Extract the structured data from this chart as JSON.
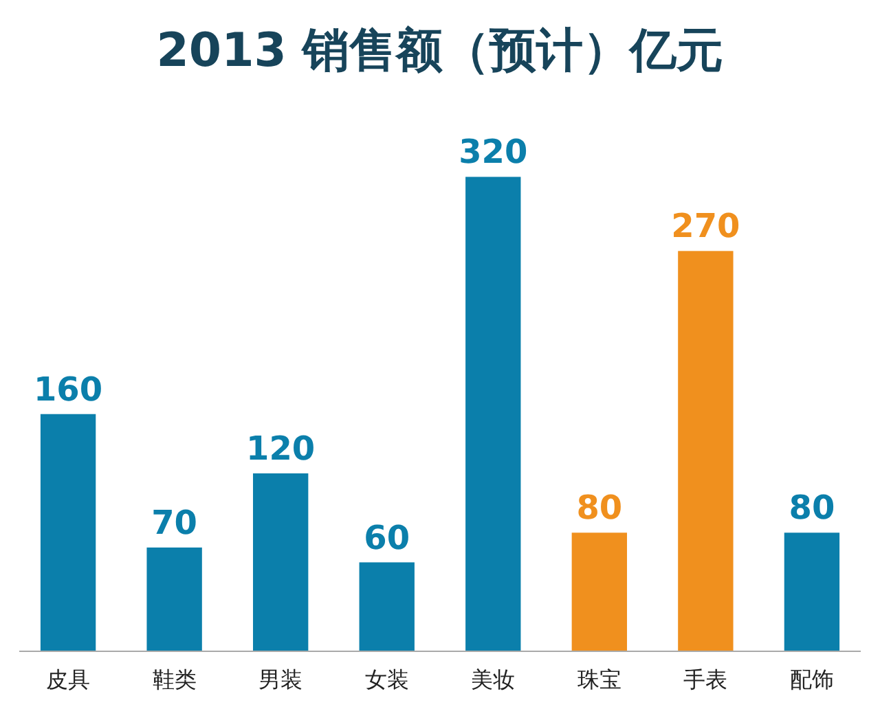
{
  "chart_data": {
    "type": "bar",
    "title": "2013 销售额（预计）亿元",
    "categories": [
      "皮具",
      "鞋类",
      "男装",
      "女装",
      "美妆",
      "珠宝",
      "手表",
      "配饰"
    ],
    "values": [
      160,
      70,
      120,
      60,
      320,
      80,
      270,
      80
    ],
    "colors": [
      "#0b7fab",
      "#0b7fab",
      "#0b7fab",
      "#0b7fab",
      "#0b7fab",
      "#f0901e",
      "#f0901e",
      "#0b7fab"
    ],
    "data_labels": true
  }
}
